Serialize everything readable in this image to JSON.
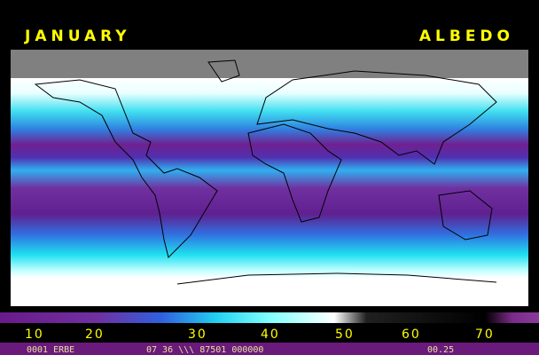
{
  "header": {
    "left": "JANUARY",
    "right": "ALBEDO"
  },
  "colorbar": {
    "ticks": [
      10,
      20,
      30,
      40,
      50,
      60,
      70
    ]
  },
  "footer": {
    "left": "0001 ERBE",
    "middle": "07 36 \\\\\\ 87501 000000",
    "right": "00.25"
  }
}
